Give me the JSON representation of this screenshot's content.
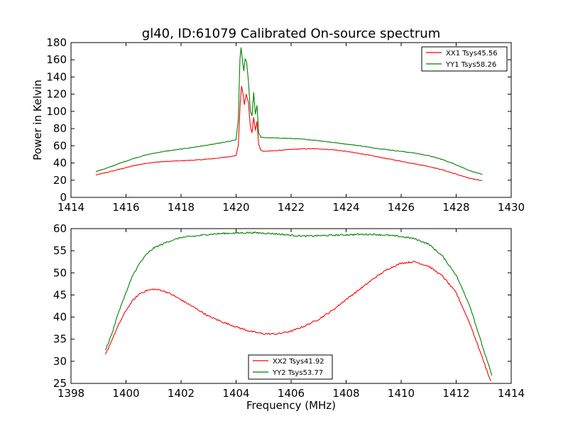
{
  "chart_data": [
    {
      "type": "line",
      "title": "gl40, ID:61079 Calibrated On-source spectrum",
      "xlabel": "",
      "ylabel": "Power in Kelvin",
      "xlim": [
        1414,
        1430
      ],
      "ylim": [
        0,
        180
      ],
      "xticks": [
        "1414",
        "1416",
        "1418",
        "1420",
        "1422",
        "1424",
        "1426",
        "1428",
        "1430"
      ],
      "yticks": [
        "0",
        "20",
        "40",
        "60",
        "80",
        "100",
        "120",
        "140",
        "160",
        "180"
      ],
      "legend_position": "top-right",
      "series": [
        {
          "name": "XX1 Tsys45.56",
          "color": "#ff0000",
          "points": [
            [
              1414.9,
              26
            ],
            [
              1415.3,
              29
            ],
            [
              1415.8,
              33
            ],
            [
              1416.3,
              37
            ],
            [
              1416.8,
              40
            ],
            [
              1417.3,
              41.5
            ],
            [
              1417.8,
              42.3
            ],
            [
              1418.3,
              43
            ],
            [
              1418.8,
              44
            ],
            [
              1419.3,
              45.5
            ],
            [
              1419.8,
              47.5
            ],
            [
              1420.0,
              49
            ],
            [
              1420.08,
              60
            ],
            [
              1420.15,
              110
            ],
            [
              1420.2,
              129
            ],
            [
              1420.25,
              121
            ],
            [
              1420.3,
              108
            ],
            [
              1420.37,
              120
            ],
            [
              1420.45,
              110
            ],
            [
              1420.52,
              82
            ],
            [
              1420.58,
              75
            ],
            [
              1420.64,
              93
            ],
            [
              1420.7,
              78
            ],
            [
              1420.76,
              88
            ],
            [
              1420.82,
              62
            ],
            [
              1420.9,
              55
            ],
            [
              1421.0,
              53.5
            ],
            [
              1421.5,
              54.5
            ],
            [
              1422.0,
              55.8
            ],
            [
              1422.5,
              56.5
            ],
            [
              1423.0,
              56.5
            ],
            [
              1423.5,
              55.5
            ],
            [
              1424.0,
              53.5
            ],
            [
              1424.5,
              51
            ],
            [
              1425.0,
              48
            ],
            [
              1425.5,
              45
            ],
            [
              1426.0,
              42
            ],
            [
              1426.5,
              39
            ],
            [
              1427.0,
              36
            ],
            [
              1427.5,
              32
            ],
            [
              1428.0,
              27
            ],
            [
              1428.5,
              22
            ],
            [
              1428.95,
              19.5
            ]
          ]
        },
        {
          "name": "YY1 Tsys58.26",
          "color": "#008000",
          "points": [
            [
              1414.9,
              30
            ],
            [
              1415.3,
              34
            ],
            [
              1415.8,
              40
            ],
            [
              1416.3,
              45.5
            ],
            [
              1416.8,
              50
            ],
            [
              1417.3,
              53
            ],
            [
              1417.8,
              55.3
            ],
            [
              1418.3,
              57.5
            ],
            [
              1418.8,
              60
            ],
            [
              1419.3,
              62.5
            ],
            [
              1419.8,
              65.5
            ],
            [
              1420.0,
              67
            ],
            [
              1420.08,
              90
            ],
            [
              1420.14,
              160
            ],
            [
              1420.18,
              174
            ],
            [
              1420.23,
              160
            ],
            [
              1420.28,
              147
            ],
            [
              1420.33,
              161
            ],
            [
              1420.38,
              158
            ],
            [
              1420.45,
              135
            ],
            [
              1420.52,
              100
            ],
            [
              1420.58,
              95
            ],
            [
              1420.64,
              122
            ],
            [
              1420.7,
              97
            ],
            [
              1420.76,
              107
            ],
            [
              1420.82,
              75
            ],
            [
              1420.9,
              70
            ],
            [
              1421.0,
              69.5
            ],
            [
              1421.5,
              69
            ],
            [
              1422.0,
              68.5
            ],
            [
              1422.5,
              67.5
            ],
            [
              1423.0,
              66
            ],
            [
              1423.5,
              64
            ],
            [
              1424.0,
              62
            ],
            [
              1424.5,
              60
            ],
            [
              1425.0,
              57.5
            ],
            [
              1425.5,
              55.5
            ],
            [
              1426.0,
              53.5
            ],
            [
              1426.5,
              51.5
            ],
            [
              1427.0,
              48.5
            ],
            [
              1427.5,
              44
            ],
            [
              1428.0,
              38
            ],
            [
              1428.5,
              31
            ],
            [
              1428.95,
              26.5
            ]
          ]
        }
      ]
    },
    {
      "type": "line",
      "title": "",
      "xlabel": "Frequency (MHz)",
      "ylabel": "",
      "xlim": [
        1398,
        1414
      ],
      "ylim": [
        25,
        60
      ],
      "xticks": [
        "1398",
        "1400",
        "1402",
        "1404",
        "1406",
        "1408",
        "1410",
        "1412",
        "1414"
      ],
      "yticks": [
        "25",
        "30",
        "35",
        "40",
        "45",
        "50",
        "55",
        "60"
      ],
      "legend_position": "bottom-center",
      "series": [
        {
          "name": "XX2 Tsys41.92",
          "color": "#ff0000",
          "points": [
            [
              1399.25,
              31.5
            ],
            [
              1399.5,
              35
            ],
            [
              1399.75,
              38.5
            ],
            [
              1400.0,
              41.5
            ],
            [
              1400.25,
              43.8
            ],
            [
              1400.5,
              45.3
            ],
            [
              1400.75,
              46
            ],
            [
              1401.0,
              46.3
            ],
            [
              1401.25,
              46.1
            ],
            [
              1401.5,
              45.6
            ],
            [
              1401.75,
              44.8
            ],
            [
              1402.0,
              43.9
            ],
            [
              1402.5,
              42.1
            ],
            [
              1403.0,
              40.2
            ],
            [
              1403.5,
              38.9
            ],
            [
              1404.0,
              37.8
            ],
            [
              1404.5,
              36.8
            ],
            [
              1405.0,
              36.2
            ],
            [
              1405.5,
              36.2
            ],
            [
              1406.0,
              36.8
            ],
            [
              1406.5,
              38
            ],
            [
              1407.0,
              39.5
            ],
            [
              1407.5,
              41.5
            ],
            [
              1408.0,
              44
            ],
            [
              1408.5,
              46.3
            ],
            [
              1409.0,
              48.7
            ],
            [
              1409.5,
              50.8
            ],
            [
              1410.0,
              52.2
            ],
            [
              1410.5,
              52.5
            ],
            [
              1411.0,
              51.5
            ],
            [
              1411.5,
              49.3
            ],
            [
              1412.0,
              45.5
            ],
            [
              1412.5,
              38.5
            ],
            [
              1413.0,
              30
            ],
            [
              1413.25,
              25.5
            ]
          ]
        },
        {
          "name": "YY2 Tsys53.77",
          "color": "#008000",
          "points": [
            [
              1399.25,
              32.5
            ],
            [
              1399.5,
              36.5
            ],
            [
              1399.75,
              41.5
            ],
            [
              1400.0,
              45.5
            ],
            [
              1400.25,
              49.5
            ],
            [
              1400.5,
              52.2
            ],
            [
              1400.75,
              54.2
            ],
            [
              1401.0,
              55.6
            ],
            [
              1401.5,
              57
            ],
            [
              1402.0,
              58
            ],
            [
              1402.5,
              58.3
            ],
            [
              1403.0,
              58.7
            ],
            [
              1403.5,
              58.9
            ],
            [
              1404.0,
              59
            ],
            [
              1404.5,
              59.1
            ],
            [
              1405.0,
              59
            ],
            [
              1405.5,
              58.8
            ],
            [
              1406.0,
              58.5
            ],
            [
              1406.5,
              58.3
            ],
            [
              1407.0,
              58.4
            ],
            [
              1407.5,
              58.5
            ],
            [
              1408.0,
              58.6
            ],
            [
              1408.5,
              58.7
            ],
            [
              1409.0,
              58.7
            ],
            [
              1409.5,
              58.5
            ],
            [
              1410.0,
              58.2
            ],
            [
              1410.5,
              57.7
            ],
            [
              1411.0,
              56.5
            ],
            [
              1411.5,
              53.8
            ],
            [
              1412.0,
              49.5
            ],
            [
              1412.5,
              42.5
            ],
            [
              1413.0,
              32.5
            ],
            [
              1413.3,
              26.8
            ]
          ]
        }
      ]
    }
  ]
}
